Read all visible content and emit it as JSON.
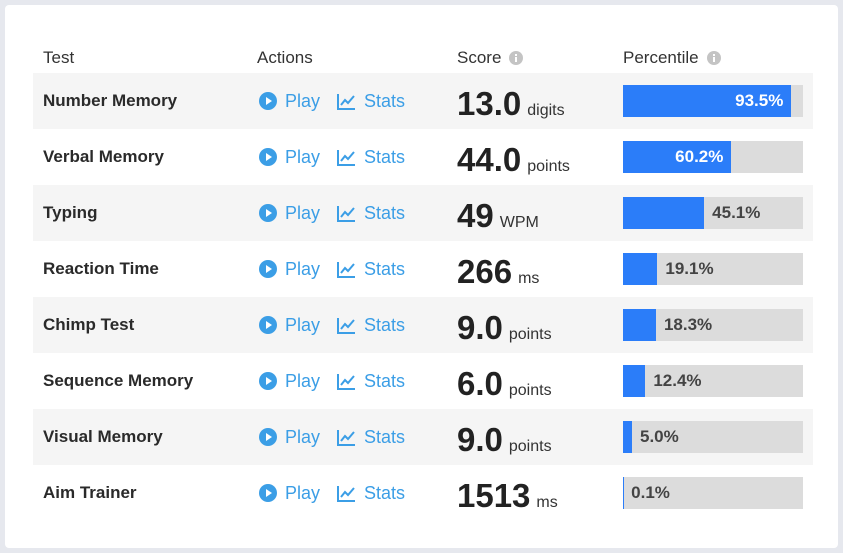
{
  "header": {
    "test": "Test",
    "actions": "Actions",
    "score": "Score",
    "percentile": "Percentile"
  },
  "actions": {
    "play": "Play",
    "stats": "Stats"
  },
  "rows": [
    {
      "test": "Number Memory",
      "score": "13.0",
      "unit": "digits",
      "percentile": 93.5,
      "percentile_label": "93.5%"
    },
    {
      "test": "Verbal Memory",
      "score": "44.0",
      "unit": "points",
      "percentile": 60.2,
      "percentile_label": "60.2%"
    },
    {
      "test": "Typing",
      "score": "49",
      "unit": "WPM",
      "percentile": 45.1,
      "percentile_label": "45.1%"
    },
    {
      "test": "Reaction Time",
      "score": "266",
      "unit": "ms",
      "percentile": 19.1,
      "percentile_label": "19.1%"
    },
    {
      "test": "Chimp Test",
      "score": "9.0",
      "unit": "points",
      "percentile": 18.3,
      "percentile_label": "18.3%"
    },
    {
      "test": "Sequence Memory",
      "score": "6.0",
      "unit": "points",
      "percentile": 12.4,
      "percentile_label": "12.4%"
    },
    {
      "test": "Visual Memory",
      "score": "9.0",
      "unit": "points",
      "percentile": 5.0,
      "percentile_label": "5.0%"
    },
    {
      "test": "Aim Trainer",
      "score": "1513",
      "unit": "ms",
      "percentile": 0.1,
      "percentile_label": "0.1%"
    }
  ]
}
